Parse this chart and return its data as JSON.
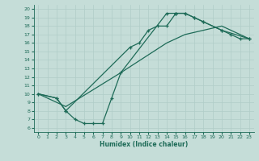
{
  "xlabel": "Humidex (Indice chaleur)",
  "ylabel": "",
  "xlim": [
    -0.5,
    23.5
  ],
  "ylim": [
    5.5,
    20.5
  ],
  "xticks": [
    0,
    1,
    2,
    3,
    4,
    5,
    6,
    7,
    8,
    9,
    10,
    11,
    12,
    13,
    14,
    15,
    16,
    17,
    18,
    19,
    20,
    21,
    22,
    23
  ],
  "yticks": [
    6,
    7,
    8,
    9,
    10,
    11,
    12,
    13,
    14,
    15,
    16,
    17,
    18,
    19,
    20
  ],
  "bg_color": "#c5ddd8",
  "line_color": "#1e6b58",
  "grid_color": "#b0cdc8",
  "curve1_x": [
    0,
    2,
    3,
    10,
    11,
    12,
    13,
    14,
    15,
    15,
    16,
    17,
    18,
    20,
    21,
    22,
    23
  ],
  "curve1_y": [
    10,
    9.5,
    8,
    15.5,
    16,
    17.5,
    18,
    18,
    19.5,
    19.5,
    19.5,
    19,
    18.5,
    17.5,
    17,
    16.5,
    16.5
  ],
  "curve2_x": [
    0,
    2,
    3,
    4,
    5,
    6,
    7,
    8,
    9,
    14,
    15,
    16,
    17,
    18,
    20,
    23
  ],
  "curve2_y": [
    10,
    9.5,
    8,
    7,
    6.5,
    6.5,
    6.5,
    9.5,
    12.5,
    19.5,
    19.5,
    19.5,
    19,
    18.5,
    17.5,
    16.5
  ],
  "curve3_x": [
    0,
    3,
    9,
    14,
    16,
    18,
    20,
    23
  ],
  "curve3_y": [
    10,
    8.5,
    12.5,
    16,
    17,
    17.5,
    18,
    16.5
  ]
}
